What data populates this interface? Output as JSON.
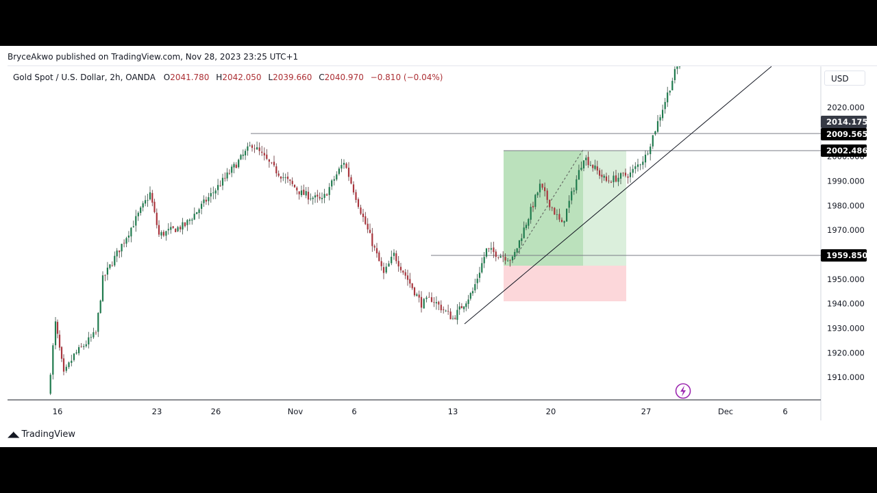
{
  "header": {
    "published": "BryceAkwo published on TradingView.com, Nov 28, 2023 23:25 UTC+1"
  },
  "legend": {
    "symbol": "Gold Spot / U.S. Dollar, 2h, OANDA",
    "open_label": "O",
    "open": "2041.780",
    "high_label": "H",
    "high": "2042.050",
    "low_label": "L",
    "low": "2039.660",
    "close_label": "C",
    "close": "2040.970",
    "change": "−0.810 (−0.04%)"
  },
  "currency": "USD",
  "brand": "TradingView",
  "colors": {
    "up": "#089981",
    "down": "#f23645",
    "candle": "#1e3a2f",
    "green_zone": "#4caf50",
    "red_zone": "#f23645"
  },
  "chart_data": {
    "type": "candlestick",
    "y_range": [
      1902,
      2038
    ],
    "y_ticks": [
      2020,
      2010,
      2000,
      1990,
      1980,
      1970,
      1960,
      1950,
      1940,
      1930,
      1920,
      1910
    ],
    "y_tick_labels": [
      "2020.000",
      "2010.000",
      "2000.000",
      "1990.000",
      "1980.000",
      "1970.000",
      "1960.000",
      "1950.000",
      "1940.000",
      "1930.000",
      "1920.000",
      "1910.000"
    ],
    "x_ticks": [
      "16",
      "23",
      "26",
      "Nov",
      "6",
      "13",
      "20",
      "27",
      "Dec",
      "6"
    ],
    "price_path": [
      [
        "Oct 16",
        1903
      ],
      [
        "Oct 17",
        1932
      ],
      [
        "Oct 18",
        1911
      ],
      [
        "Oct 19",
        1919
      ],
      [
        "Oct 20",
        1928
      ],
      [
        "Oct 22",
        1950
      ],
      [
        "Oct 23",
        1985
      ],
      [
        "Oct 24",
        1968
      ],
      [
        "Oct 25",
        1972
      ],
      [
        "Oct 26",
        1990
      ],
      [
        "Oct 27",
        2005
      ],
      [
        "Oct 30",
        1995
      ],
      [
        "Oct 31",
        1985
      ],
      [
        "Nov 2",
        1982
      ],
      [
        "Nov 3",
        1998
      ],
      [
        "Nov 6",
        1975
      ],
      [
        "Nov 8",
        1952
      ],
      [
        "Nov 9",
        1960
      ],
      [
        "Nov 10",
        1940
      ],
      [
        "Nov 12",
        1942
      ],
      [
        "Nov 13",
        1934
      ],
      [
        "Nov 14",
        1945
      ],
      [
        "Nov 15",
        1962
      ],
      [
        "Nov 16",
        1958
      ],
      [
        "Nov 17",
        1988
      ],
      [
        "Nov 20",
        1972
      ],
      [
        "Nov 21",
        2000
      ],
      [
        "Nov 22",
        1990
      ],
      [
        "Nov 24",
        1993
      ],
      [
        "Nov 26",
        2000
      ],
      [
        "Nov 27",
        2014
      ],
      [
        "Nov 28",
        2040
      ]
    ],
    "horizontal_levels": [
      {
        "price": 2014.175,
        "label": "2014.175",
        "badge": "#363a45"
      },
      {
        "price": 2009.565,
        "label": "2009.565",
        "badge": "#000000"
      },
      {
        "price": 2002.486,
        "label": "2002.486",
        "badge": "#000000"
      },
      {
        "price": 1959.85,
        "label": "1959.850",
        "badge": "#000000"
      }
    ],
    "long_position": {
      "entry": 1955.5,
      "target": 2002.5,
      "stop": 1941
    },
    "trendline": {
      "from": [
        "Nov 13",
        1932
      ],
      "to": [
        "Nov 30",
        2048
      ]
    }
  }
}
